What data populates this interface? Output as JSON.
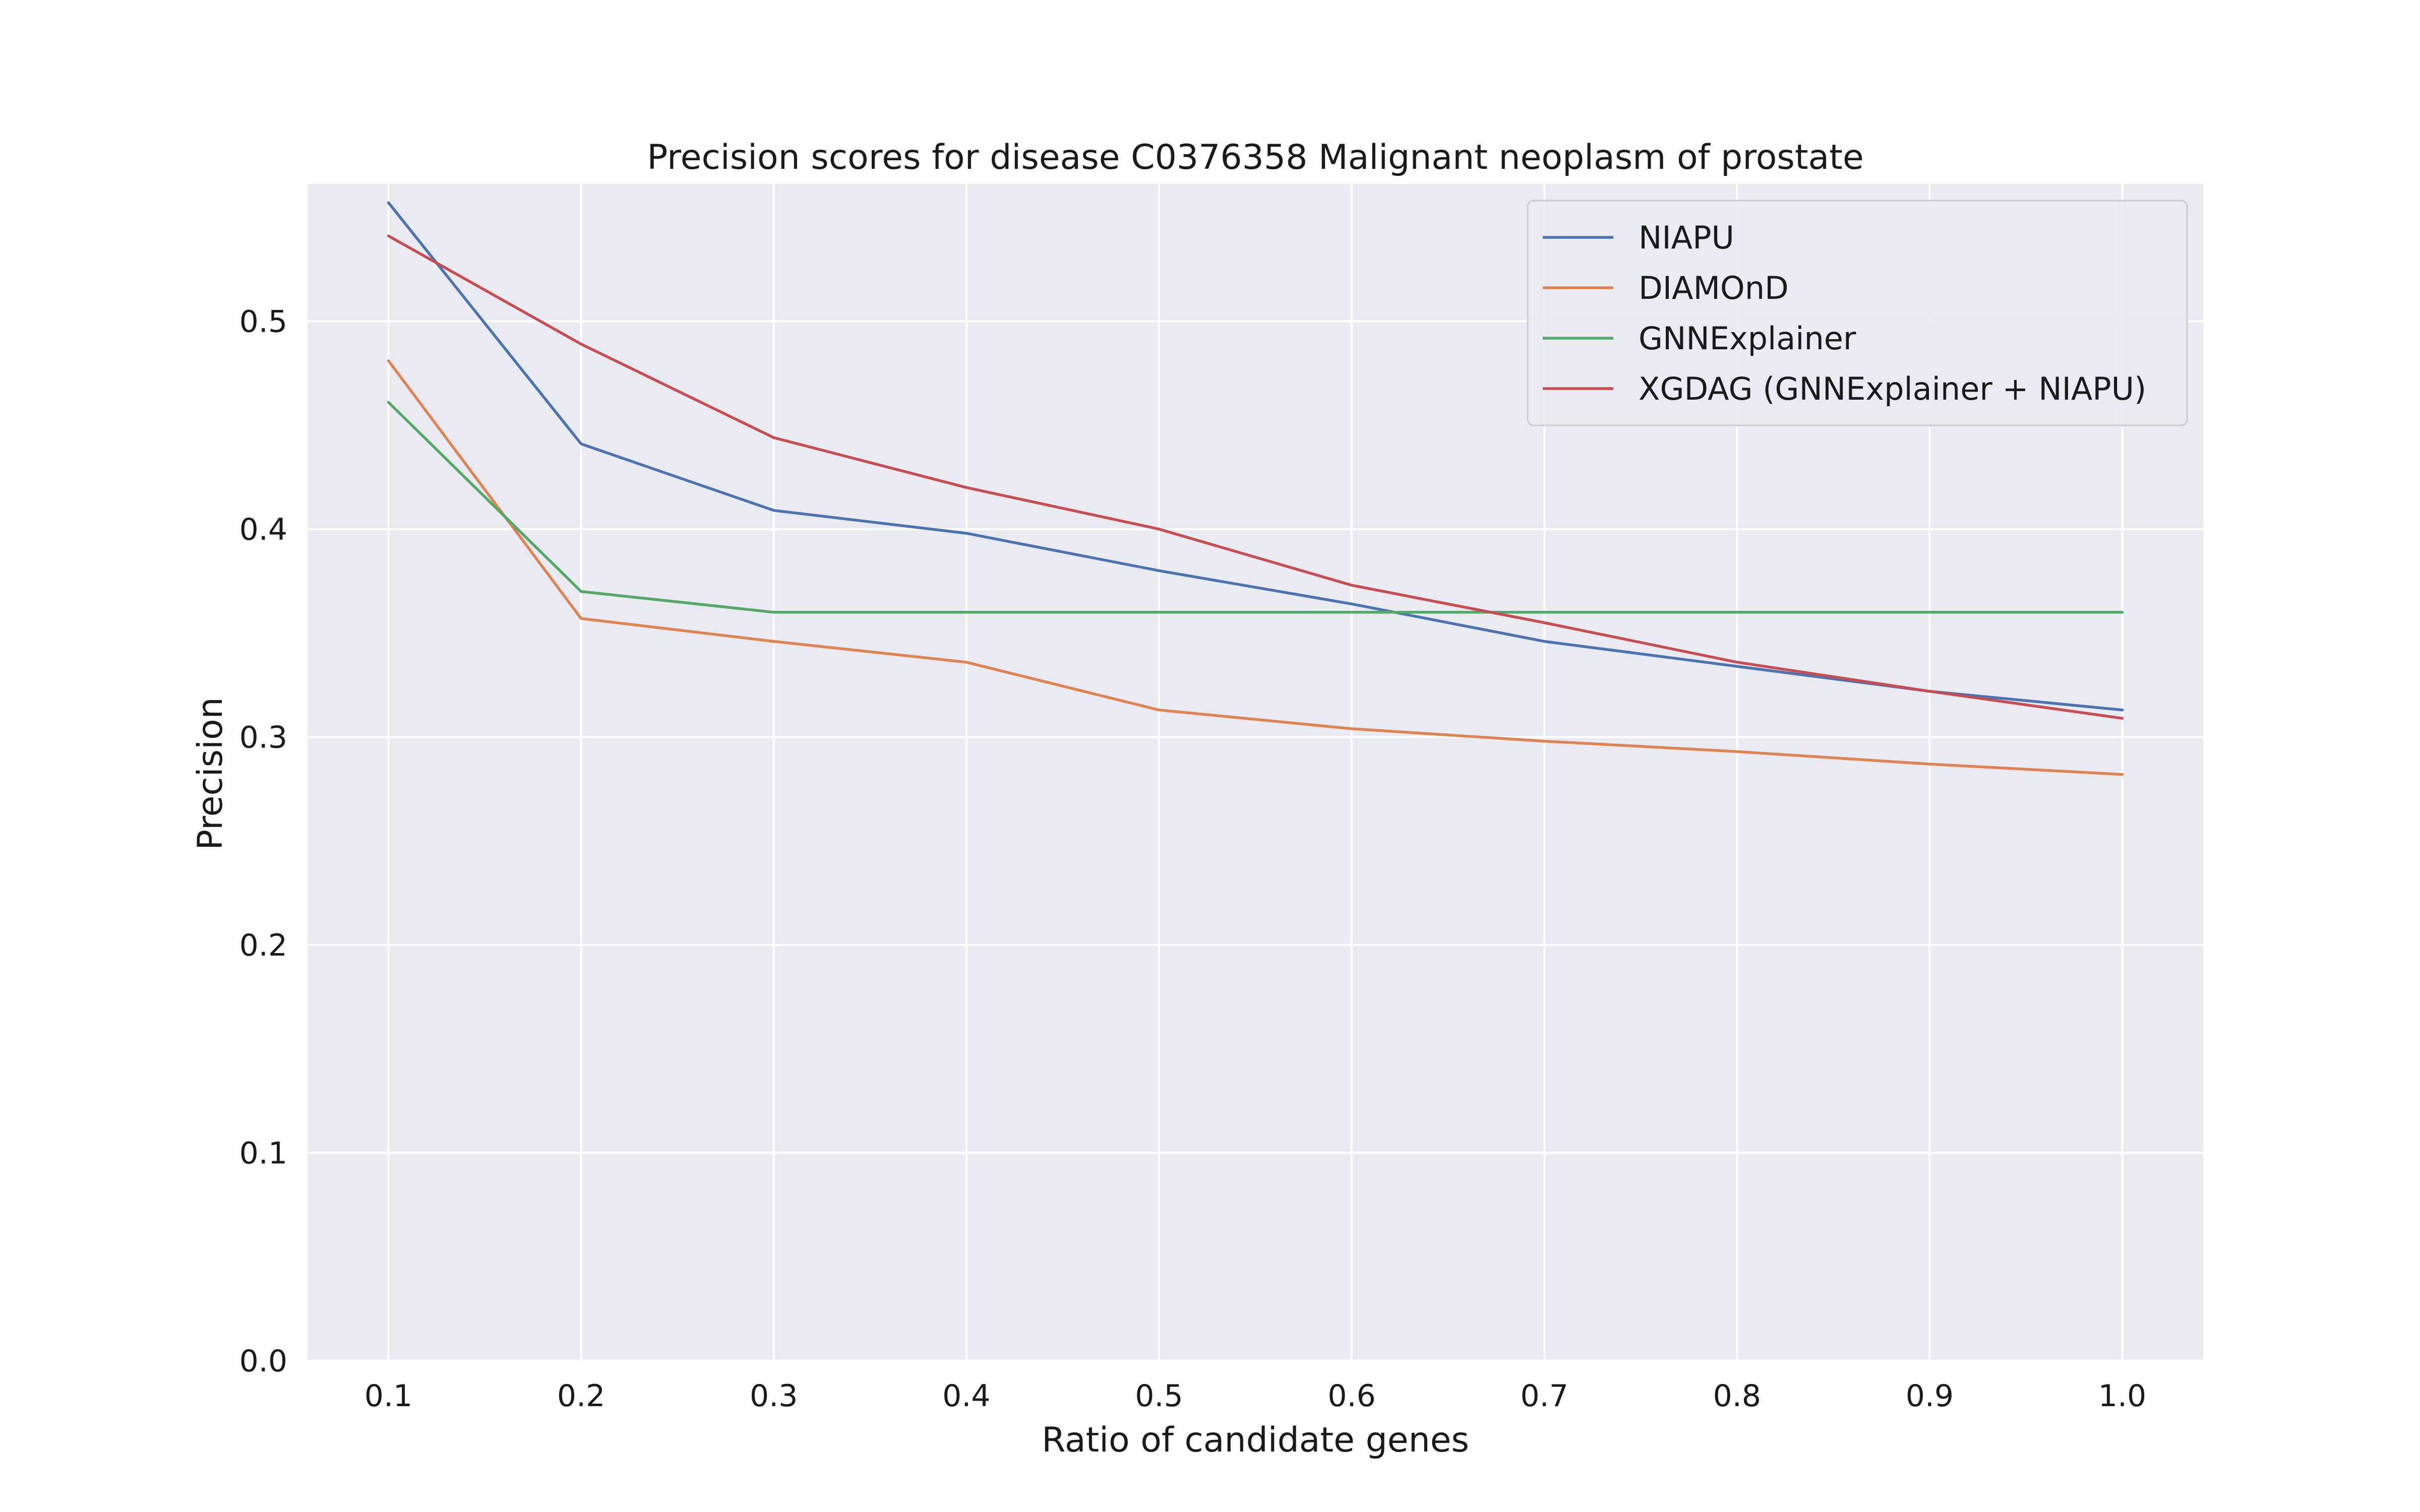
{
  "chart_data": {
    "type": "line",
    "title": "Precision scores for disease C0376358 Malignant neoplasm of prostate",
    "xlabel": "Ratio of candidate genes",
    "ylabel": "Precision",
    "x": [
      0.1,
      0.2,
      0.3,
      0.4,
      0.5,
      0.6,
      0.7,
      0.8,
      0.9,
      1.0
    ],
    "xlim": [
      0.058,
      1.042
    ],
    "ylim": [
      0.0,
      0.566
    ],
    "xticks": [
      "0.1",
      "0.2",
      "0.3",
      "0.4",
      "0.5",
      "0.6",
      "0.7",
      "0.8",
      "0.9",
      "1.0"
    ],
    "yticks": [
      "0.0",
      "0.1",
      "0.2",
      "0.3",
      "0.4",
      "0.5"
    ],
    "grid": true,
    "legend_position": "top-right",
    "background_color": "#eaeaf2",
    "series": [
      {
        "name": "NIAPU",
        "color": "#4c72b0",
        "values": [
          0.557,
          0.441,
          0.409,
          0.398,
          0.38,
          0.364,
          0.346,
          0.334,
          0.322,
          0.313
        ]
      },
      {
        "name": "DIAMOnD",
        "color": "#dd8452",
        "values": [
          0.481,
          0.357,
          0.346,
          0.336,
          0.313,
          0.304,
          0.298,
          0.293,
          0.287,
          0.282
        ]
      },
      {
        "name": "GNNExplainer",
        "color": "#55a868",
        "values": [
          0.461,
          0.37,
          0.36,
          0.36,
          0.36,
          0.36,
          0.36,
          0.36,
          0.36,
          0.36
        ]
      },
      {
        "name": "XGDAG (GNNExplainer + NIAPU)",
        "color": "#c44e52",
        "values": [
          0.541,
          0.489,
          0.444,
          0.42,
          0.4,
          0.373,
          0.355,
          0.336,
          0.322,
          0.309
        ]
      }
    ]
  }
}
